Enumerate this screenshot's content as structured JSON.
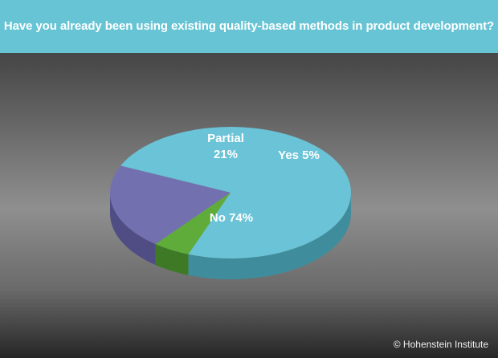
{
  "title": "Have you already been using existing quality-based methods in product development?",
  "footer": "© Hohenstein Institute",
  "chart_data": {
    "type": "pie",
    "style": "3d",
    "slices": [
      {
        "label": "No",
        "value": 74,
        "display": "No 74%",
        "color": "#6ac3d6",
        "side_color": "#3f8d9c"
      },
      {
        "label": "Partial",
        "value": 21,
        "display_lines": [
          "Partial",
          "21%"
        ],
        "color": "#7370b0",
        "side_color": "#4f4d84"
      },
      {
        "label": "Yes",
        "value": 5,
        "display": "Yes 5%",
        "color": "#5fac3b",
        "side_color": "#3e7a26"
      }
    ]
  }
}
